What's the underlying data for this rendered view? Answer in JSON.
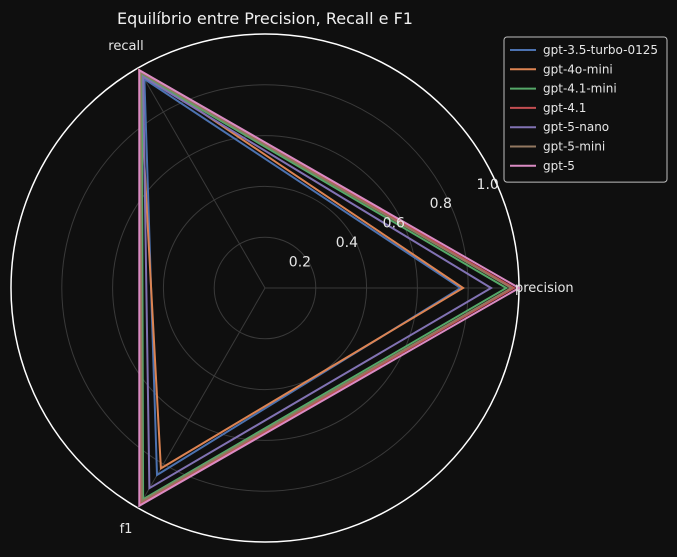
{
  "chart_data": {
    "type": "radar",
    "title": "Equilíbrio entre Precision, Recall e F1",
    "axes": [
      "precision",
      "recall",
      "f1"
    ],
    "rlim": [
      0,
      1.0
    ],
    "rticks": [
      0.2,
      0.4,
      0.6,
      0.8,
      1.0
    ],
    "rtick_labels": [
      "0.2",
      "0.4",
      "0.6",
      "0.8",
      "1.0"
    ],
    "grid": true,
    "legend_position": "top-right",
    "colors": {
      "background": "#0f0f0f",
      "outer_circle": "#ffffff",
      "grid": "#3a3a3a",
      "text": "#e6e6e6"
    },
    "series": [
      {
        "name": "gpt-3.5-turbo-0125",
        "color": "#4c72b0",
        "values": [
          0.77,
          0.95,
          0.85
        ]
      },
      {
        "name": "gpt-4o-mini",
        "color": "#dd8452",
        "values": [
          0.78,
          0.99,
          0.82
        ]
      },
      {
        "name": "gpt-4.1-mini",
        "color": "#55a868",
        "values": [
          0.95,
          0.97,
          0.96
        ]
      },
      {
        "name": "gpt-4.1",
        "color": "#c44e52",
        "values": [
          0.98,
          0.99,
          0.98
        ]
      },
      {
        "name": "gpt-5-nano",
        "color": "#8172b3",
        "values": [
          0.89,
          0.96,
          0.91
        ]
      },
      {
        "name": "gpt-5-mini",
        "color": "#937860",
        "values": [
          0.97,
          0.98,
          0.97
        ]
      },
      {
        "name": "gpt-5",
        "color": "#da8bc3",
        "values": [
          1.0,
          0.99,
          0.99
        ]
      }
    ]
  }
}
